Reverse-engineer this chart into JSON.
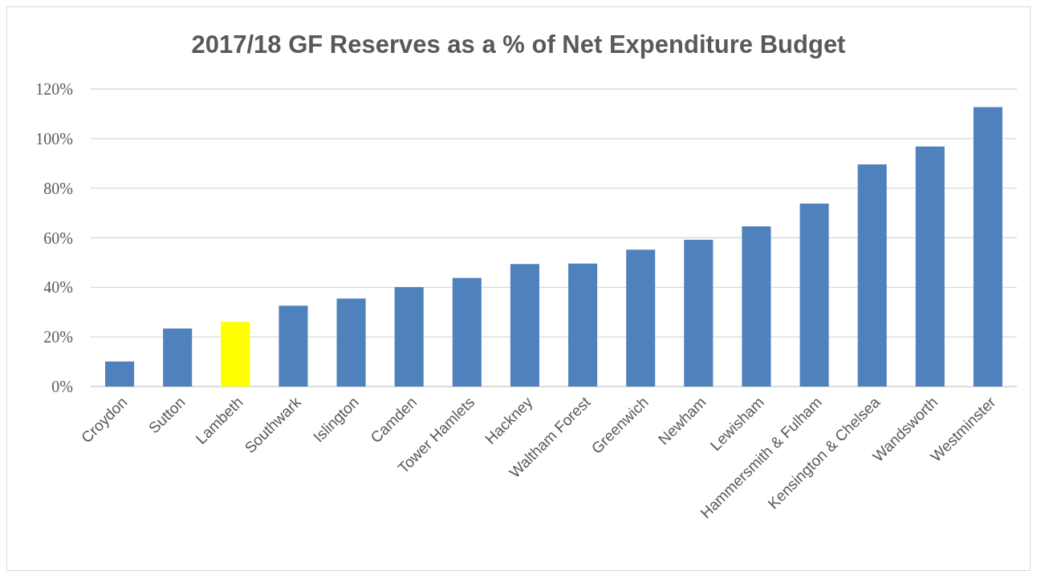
{
  "chart_data": {
    "type": "bar",
    "title": "2017/18 GF Reserves as a % of Net Expenditure Budget",
    "categories": [
      "Croydon",
      "Sutton",
      "Lambeth",
      "Southwark",
      "Islington",
      "Camden",
      "Tower Hamlets",
      "Hackney",
      "Waltham Forest",
      "Greenwich",
      "Newham",
      "Lewisham",
      "Hammersmith & Fulham",
      "Kensington & Chelsea",
      "Wandsworth",
      "Westminster"
    ],
    "values": [
      10.1,
      23.4,
      26.1,
      32.6,
      35.5,
      40.1,
      43.8,
      49.4,
      49.6,
      55.2,
      59.2,
      64.6,
      73.8,
      89.6,
      96.8,
      112.7
    ],
    "colors": [
      "#4f81bd",
      "#4f81bd",
      "#ffff00",
      "#4f81bd",
      "#4f81bd",
      "#4f81bd",
      "#4f81bd",
      "#4f81bd",
      "#4f81bd",
      "#4f81bd",
      "#4f81bd",
      "#4f81bd",
      "#4f81bd",
      "#4f81bd",
      "#4f81bd",
      "#4f81bd"
    ],
    "ylim": [
      0,
      120
    ],
    "yticks": [
      {
        "value": 0,
        "label": "0%"
      },
      {
        "value": 20,
        "label": "20%"
      },
      {
        "value": 40,
        "label": "40%"
      },
      {
        "value": 60,
        "label": "60%"
      },
      {
        "value": 80,
        "label": "80%"
      },
      {
        "value": 100,
        "label": "100%"
      },
      {
        "value": 120,
        "label": "120%"
      }
    ],
    "grid": "y"
  }
}
